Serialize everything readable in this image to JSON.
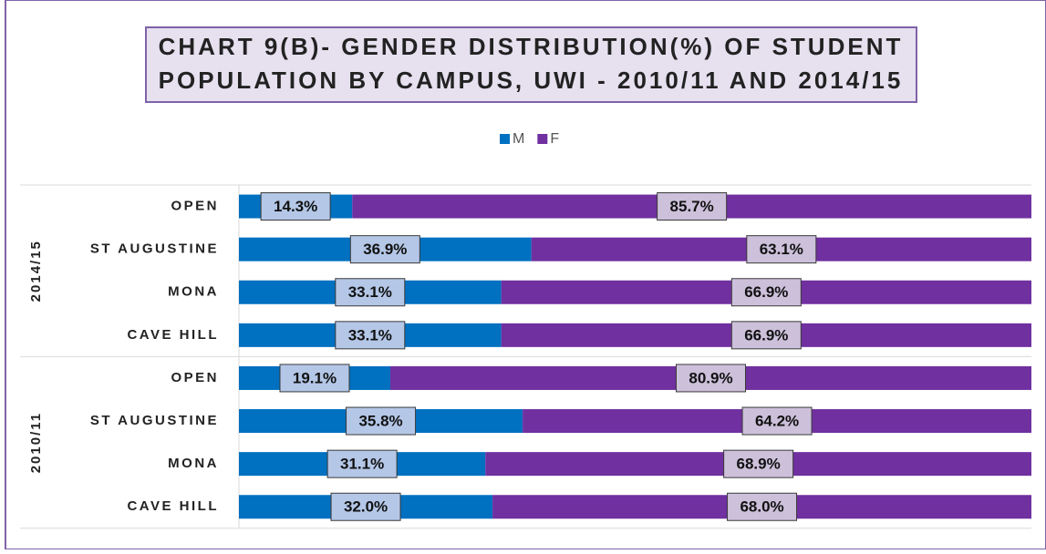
{
  "chart_data": {
    "type": "stacked-bar-horizontal",
    "title": [
      "CHART 9(B)- GENDER DISTRIBUTION(%) OF STUDENT",
      "POPULATION BY CAMPUS, UWI - 2010/11 AND 2014/15"
    ],
    "groups": [
      {
        "name": "2014/15",
        "categories": [
          "OPEN",
          "ST AUGUSTINE",
          "MONA",
          "CAVE HILL"
        ]
      },
      {
        "name": "2010/11",
        "categories": [
          "OPEN",
          "ST AUGUSTINE",
          "MONA",
          "CAVE HILL"
        ]
      }
    ],
    "series": [
      {
        "name": "M",
        "color": "#0070c0",
        "label_fill": "#b4c7e7",
        "values": [
          14.3,
          36.9,
          33.1,
          33.1,
          19.1,
          35.8,
          31.1,
          32.0
        ],
        "value_labels": [
          "14.3%",
          "36.9%",
          "33.1%",
          "33.1%",
          "19.1%",
          "35.8%",
          "31.1%",
          "32.0%"
        ]
      },
      {
        "name": "F",
        "color": "#7030a0",
        "label_fill": "#ccc0da",
        "values": [
          85.7,
          63.1,
          66.9,
          66.9,
          80.9,
          64.2,
          68.9,
          68.0
        ],
        "value_labels": [
          "85.7%",
          "63.1%",
          "66.9%",
          "66.9%",
          "80.9%",
          "64.2%",
          "68.9%",
          "68.0%"
        ]
      }
    ],
    "xlim": [
      0,
      100
    ],
    "legend": "top"
  }
}
